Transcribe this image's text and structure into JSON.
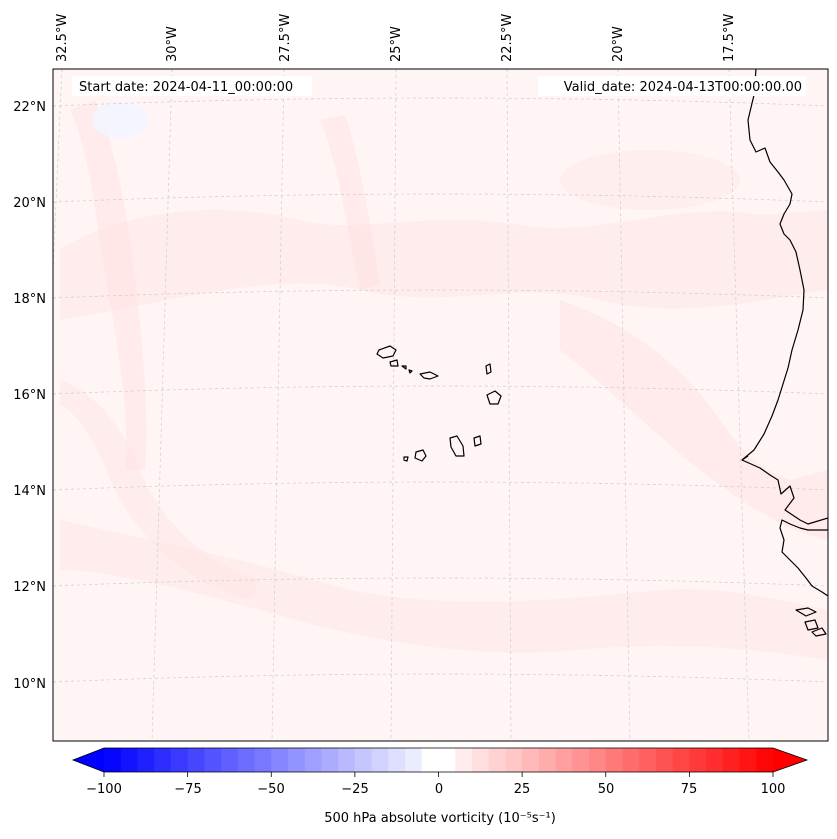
{
  "map": {
    "start_date_label": "Start date: 2024-04-11_00:00:00",
    "valid_date_label": "Valid_date: 2024-04-13T00:00:00.00",
    "lon_labels": [
      "32.5°W",
      "30°W",
      "27.5°W",
      "25°W",
      "22.5°W",
      "20°W",
      "17.5°W"
    ],
    "lat_labels": [
      "22°N",
      "20°N",
      "18°N",
      "16°N",
      "14°N",
      "12°N",
      "10°N"
    ],
    "field_base_color": "#fff5f5",
    "field_tint_color": "#ffe2e2",
    "coastline_color": "#000000",
    "gridline_color": "#cccccc"
  },
  "colorbar": {
    "label": "500 hPa absolute vorticity (10⁻⁵s⁻¹)",
    "min": -100,
    "max": 100,
    "step": 5,
    "ticks": [
      "−100",
      "−75",
      "−50",
      "−25",
      "0",
      "25",
      "50",
      "75",
      "100"
    ],
    "min_color": "#0000ff",
    "mid_color": "#ffffff",
    "max_color": "#ff0000"
  }
}
